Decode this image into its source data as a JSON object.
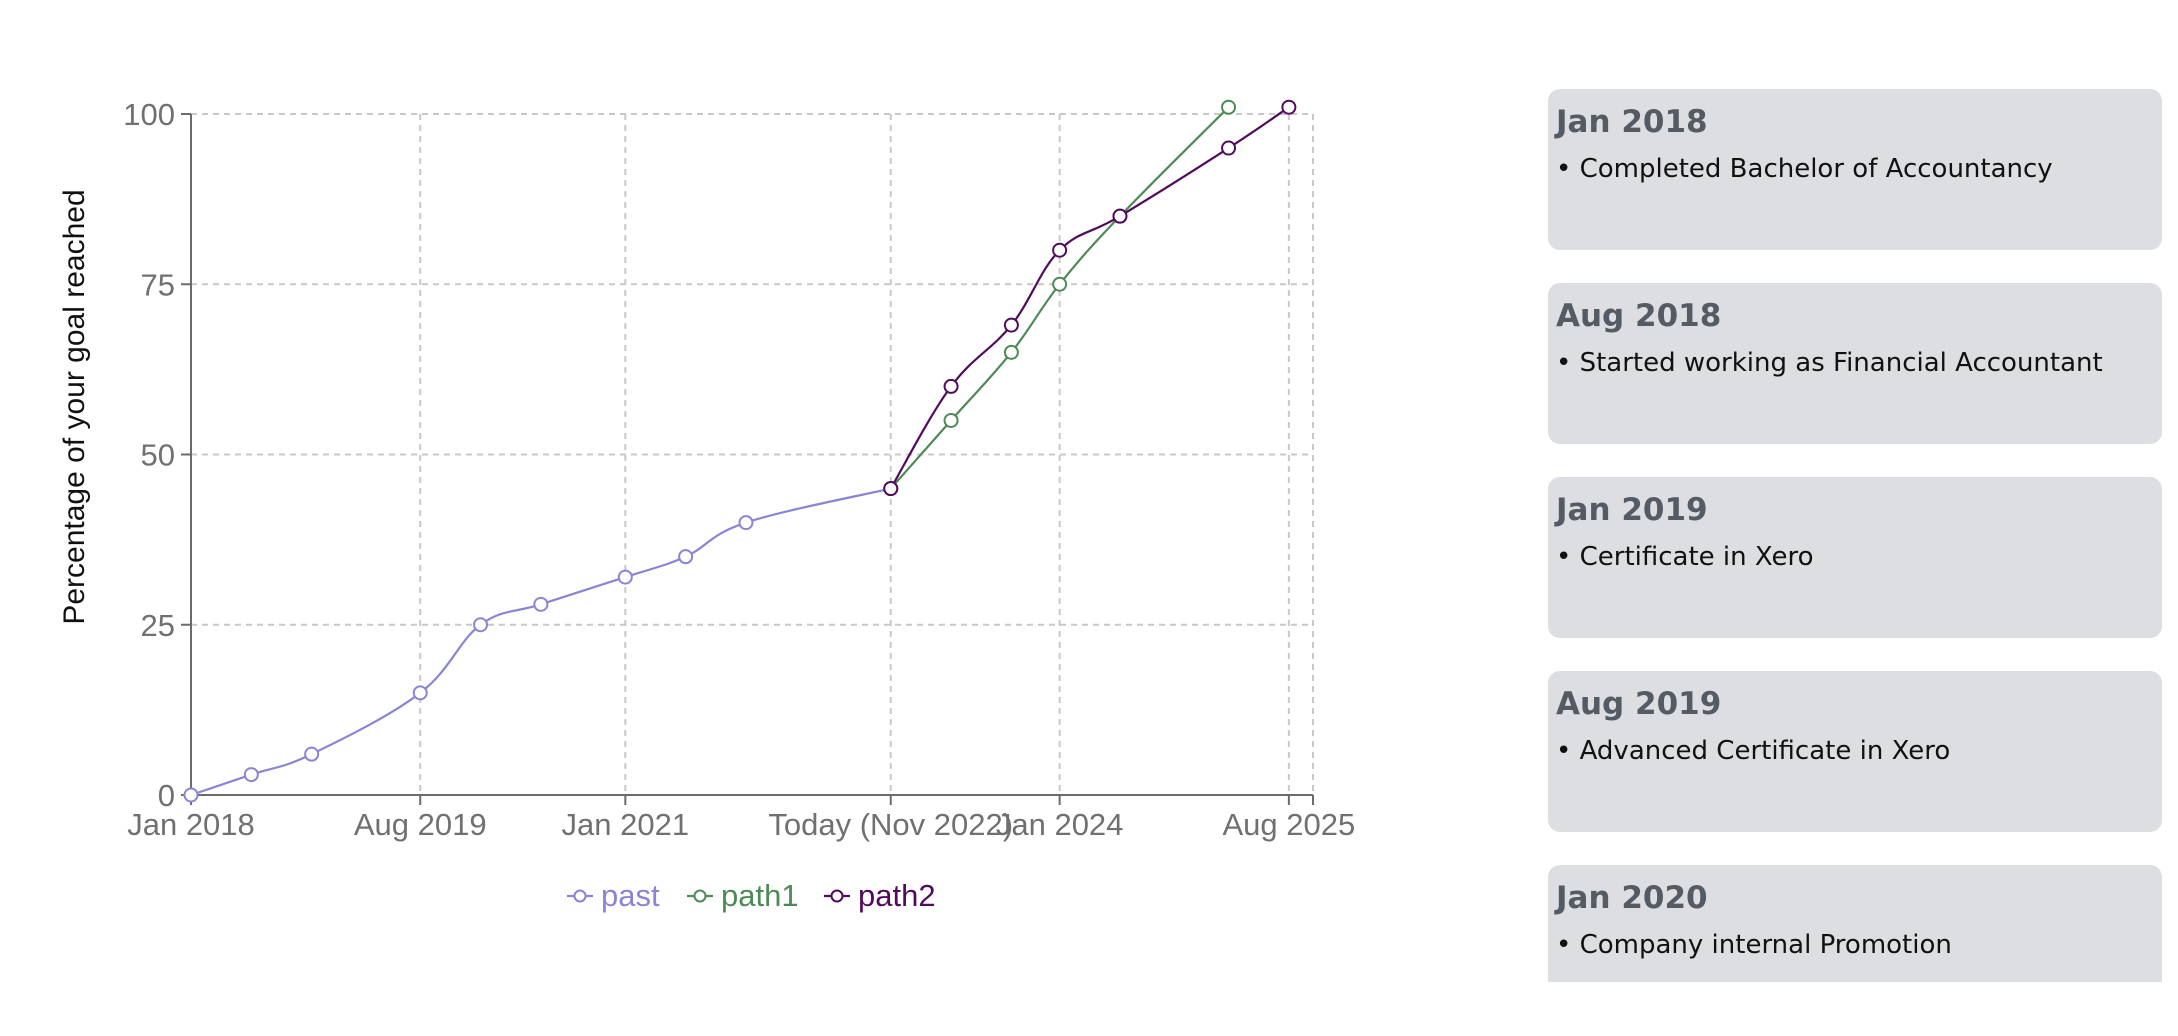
{
  "chart_data": {
    "type": "line",
    "ylabel": "Percentage of your goal reached",
    "xlabel": "",
    "ylim": [
      0,
      100
    ],
    "xlim": [
      "2018-01",
      "2025-10"
    ],
    "grid": true,
    "legend_position": "bottom-center",
    "yticks": [
      0,
      25,
      50,
      75,
      100
    ],
    "xticks": [
      {
        "x": "2018-01",
        "label": "Jan 2018"
      },
      {
        "x": "2019-08",
        "label": "Aug 2019"
      },
      {
        "x": "2021-01",
        "label": "Jan 2021"
      },
      {
        "x": "2022-11",
        "label": "Today (Nov 2022)"
      },
      {
        "x": "2024-01",
        "label": "Jan 2024"
      },
      {
        "x": "2025-08",
        "label": "Aug 2025"
      }
    ],
    "series": [
      {
        "name": "past",
        "color": "#8a84d6",
        "points": [
          {
            "x": "2018-01",
            "y": 0
          },
          {
            "x": "2018-06",
            "y": 3
          },
          {
            "x": "2018-11",
            "y": 6
          },
          {
            "x": "2019-08",
            "y": 15
          },
          {
            "x": "2020-01",
            "y": 25
          },
          {
            "x": "2020-06",
            "y": 28
          },
          {
            "x": "2021-01",
            "y": 32
          },
          {
            "x": "2021-06",
            "y": 35
          },
          {
            "x": "2021-11",
            "y": 40
          },
          {
            "x": "2022-11",
            "y": 45
          }
        ]
      },
      {
        "name": "path1",
        "color": "#4d8a55",
        "points": [
          {
            "x": "2022-11",
            "y": 45
          },
          {
            "x": "2023-04",
            "y": 55
          },
          {
            "x": "2023-09",
            "y": 65
          },
          {
            "x": "2024-01",
            "y": 75
          },
          {
            "x": "2024-06",
            "y": 85
          },
          {
            "x": "2025-03",
            "y": 101
          }
        ]
      },
      {
        "name": "path2",
        "color": "#520a5e",
        "points": [
          {
            "x": "2022-11",
            "y": 45
          },
          {
            "x": "2023-04",
            "y": 60
          },
          {
            "x": "2023-09",
            "y": 69
          },
          {
            "x": "2024-01",
            "y": 80
          },
          {
            "x": "2024-06",
            "y": 85
          },
          {
            "x": "2025-03",
            "y": 95
          },
          {
            "x": "2025-08",
            "y": 101
          }
        ]
      }
    ]
  },
  "timeline": [
    {
      "date": "Jan 2018",
      "item": "• Completed Bachelor of Accountancy"
    },
    {
      "date": "Aug 2018",
      "item": "• Started working as Financial Accountant"
    },
    {
      "date": "Jan 2019",
      "item": "• Certificate in Xero"
    },
    {
      "date": "Aug 2019",
      "item": "• Advanced Certificate in Xero"
    },
    {
      "date": "Jan 2020",
      "item": "• Company internal Promotion"
    }
  ],
  "colors": {
    "axis": "#6b6b6b",
    "tick_text": "#707070",
    "grid": "#c8c8c8",
    "card_bg": "#dddee2",
    "card_date": "#545b63"
  }
}
